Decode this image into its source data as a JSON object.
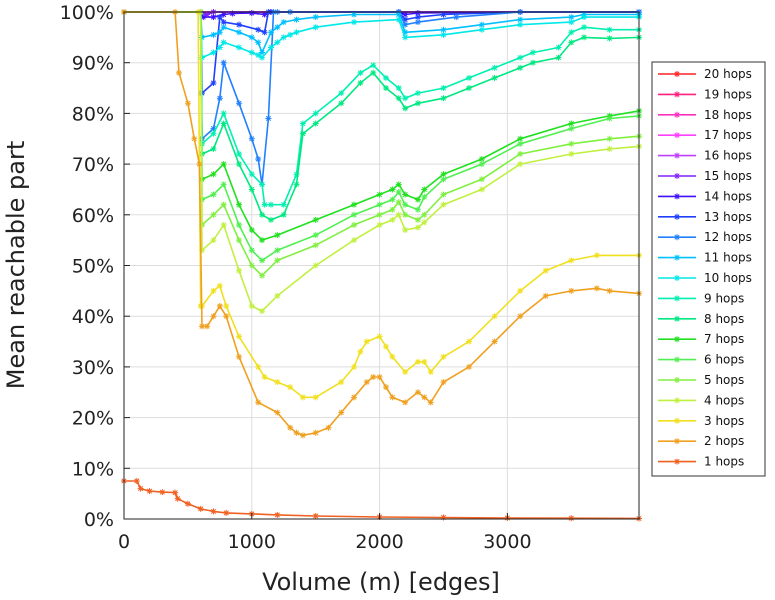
{
  "chart_data": {
    "type": "line",
    "title": "",
    "xlabel": "Volume (m) [edges]",
    "ylabel": "Mean reachable part",
    "xlim": [
      0,
      4030
    ],
    "ylim": [
      0,
      100
    ],
    "x_ticks": [
      0,
      1000,
      2000,
      3000
    ],
    "x_tick_labels": [
      "0",
      "1000",
      "2000",
      "3000"
    ],
    "y_ticks": [
      0,
      10,
      20,
      30,
      40,
      50,
      60,
      70,
      80,
      90,
      100
    ],
    "y_tick_labels": [
      "0%",
      "10%",
      "20%",
      "30%",
      "40%",
      "50%",
      "60%",
      "70%",
      "80%",
      "90%",
      "100%"
    ],
    "grid": true,
    "legend_position": "right",
    "series": [
      {
        "name": "20 hops",
        "color": "#ff2020",
        "x": [
          0,
          4030
        ],
        "y": [
          100,
          100
        ]
      },
      {
        "name": "19 hops",
        "color": "#ff2080",
        "x": [
          0,
          4030
        ],
        "y": [
          100,
          100
        ]
      },
      {
        "name": "18 hops",
        "color": "#ff30c0",
        "x": [
          0,
          4030
        ],
        "y": [
          100,
          100
        ]
      },
      {
        "name": "17 hops",
        "color": "#ff40ff",
        "x": [
          0,
          4030
        ],
        "y": [
          100,
          100
        ]
      },
      {
        "name": "16 hops",
        "color": "#c040ff",
        "x": [
          0,
          4030
        ],
        "y": [
          100,
          100
        ]
      },
      {
        "name": "15 hops",
        "color": "#8020ff",
        "x": [
          0,
          600,
          650,
          700,
          4030
        ],
        "y": [
          100,
          100,
          99.5,
          100,
          100
        ]
      },
      {
        "name": "14 hops",
        "color": "#4010ff",
        "x": [
          0,
          600,
          620,
          700,
          780,
          850,
          1000,
          1100,
          1150,
          2150,
          2200,
          2300,
          3100,
          4030
        ],
        "y": [
          100,
          100,
          99,
          99,
          99.5,
          99.7,
          99.8,
          99.5,
          100,
          100,
          99.5,
          99.8,
          100,
          100
        ]
      },
      {
        "name": "13 hops",
        "color": "#2040ff",
        "x": [
          0,
          600,
          610,
          700,
          750,
          780,
          900,
          1050,
          1100,
          1130,
          2150,
          2200,
          2300,
          2500,
          3100,
          4030
        ],
        "y": [
          100,
          100,
          84,
          86,
          99,
          98,
          97.5,
          96.5,
          96,
          100,
          100,
          98.5,
          99,
          99.5,
          100,
          100
        ]
      },
      {
        "name": "12 hops",
        "color": "#2080ff",
        "x": [
          0,
          600,
          610,
          700,
          750,
          780,
          900,
          1000,
          1050,
          1080,
          1130,
          1170,
          1200,
          1300,
          2150,
          2200,
          2300,
          2600,
          3100,
          4030
        ],
        "y": [
          100,
          100,
          75,
          77,
          83,
          90,
          82,
          75,
          71,
          66,
          79,
          100,
          100,
          100,
          100,
          97.5,
          98,
          99,
          100,
          100
        ]
      },
      {
        "name": "11 hops",
        "color": "#00c0ff",
        "x": [
          0,
          600,
          610,
          700,
          750,
          780,
          900,
          1000,
          1050,
          1080,
          1150,
          1200,
          1250,
          1350,
          1500,
          1800,
          2150,
          2200,
          2500,
          2800,
          3100,
          3500,
          3600,
          4030
        ],
        "y": [
          100,
          100,
          95,
          95.5,
          96,
          97,
          96,
          95,
          94,
          92,
          96,
          97,
          98,
          98.5,
          99,
          99.5,
          99.5,
          96,
          96.5,
          97.5,
          98.5,
          99,
          99.5,
          99.5
        ]
      },
      {
        "name": "10 hops",
        "color": "#00e8e8",
        "x": [
          0,
          600,
          610,
          700,
          750,
          780,
          900,
          1000,
          1050,
          1080,
          1150,
          1200,
          1250,
          1300,
          1350,
          1500,
          1800,
          2150,
          2200,
          2500,
          2800,
          3100,
          3500,
          3600,
          4030
        ],
        "y": [
          100,
          100,
          91,
          92,
          93,
          94,
          93,
          92,
          91.5,
          91,
          93,
          94,
          95,
          95.5,
          96,
          97,
          98,
          98.5,
          95,
          95.5,
          96.5,
          97.5,
          98,
          99,
          99
        ]
      },
      {
        "name": "9 hops",
        "color": "#00f0b0",
        "x": [
          0,
          600,
          610,
          700,
          780,
          900,
          1000,
          1080,
          1100,
          1150,
          1250,
          1350,
          1400,
          1500,
          1700,
          1850,
          1950,
          2050,
          2150,
          2200,
          2300,
          2500,
          2700,
          2900,
          3100,
          3200,
          3400,
          3500,
          3600,
          3800,
          4030
        ],
        "y": [
          100,
          100,
          74,
          76,
          80,
          72,
          68,
          66,
          62,
          62,
          62,
          68,
          78,
          80,
          84,
          88,
          89.5,
          87,
          85,
          83,
          84,
          85,
          87,
          89,
          91,
          92,
          93,
          96,
          97,
          96.5,
          96.5
        ]
      },
      {
        "name": "8 hops",
        "color": "#00e880",
        "x": [
          0,
          600,
          610,
          700,
          780,
          900,
          1000,
          1080,
          1150,
          1250,
          1350,
          1400,
          1500,
          1700,
          1850,
          1950,
          2050,
          2150,
          2200,
          2300,
          2500,
          2700,
          2900,
          3100,
          3200,
          3400,
          3500,
          3600,
          3800,
          4030
        ],
        "y": [
          100,
          100,
          72,
          73,
          78,
          70,
          65,
          60,
          59,
          60,
          66,
          76,
          78,
          82,
          86,
          88,
          85,
          83,
          81,
          82,
          83,
          85,
          87,
          89,
          90,
          91,
          94,
          95,
          94.8,
          95
        ]
      },
      {
        "name": "7 hops",
        "color": "#20e020",
        "x": [
          0,
          600,
          610,
          700,
          780,
          900,
          1000,
          1080,
          1200,
          1500,
          1800,
          2000,
          2100,
          2150,
          2200,
          2300,
          2350,
          2500,
          2800,
          3100,
          3500,
          3800,
          4030
        ],
        "y": [
          100,
          100,
          67,
          68,
          70,
          62,
          57,
          55,
          56,
          59,
          62,
          64,
          65,
          66,
          64,
          63,
          65,
          68,
          71,
          75,
          78,
          79.5,
          80.5
        ]
      },
      {
        "name": "6 hops",
        "color": "#50f050",
        "x": [
          0,
          600,
          610,
          700,
          780,
          900,
          1000,
          1080,
          1200,
          1500,
          1800,
          2000,
          2100,
          2150,
          2200,
          2300,
          2350,
          2500,
          2800,
          3100,
          3500,
          3800,
          4030
        ],
        "y": [
          100,
          100,
          63,
          64,
          66,
          58,
          53,
          51,
          53,
          56,
          60,
          62,
          63,
          64.5,
          62,
          61,
          63.5,
          67,
          70,
          74,
          77,
          79,
          79.5
        ]
      },
      {
        "name": "5 hops",
        "color": "#80f040",
        "x": [
          0,
          600,
          610,
          700,
          780,
          900,
          1000,
          1080,
          1200,
          1500,
          1800,
          2000,
          2100,
          2150,
          2200,
          2300,
          2350,
          2500,
          2800,
          3100,
          3500,
          3800,
          4030
        ],
        "y": [
          100,
          100,
          58,
          60,
          62,
          55,
          50,
          48,
          51,
          54,
          58,
          60,
          61,
          62.5,
          60,
          59,
          60,
          64,
          67,
          72,
          74,
          75,
          75.5
        ]
      },
      {
        "name": "4 hops",
        "color": "#c0f040",
        "x": [
          0,
          600,
          610,
          700,
          780,
          900,
          1000,
          1080,
          1200,
          1500,
          1800,
          2000,
          2100,
          2150,
          2200,
          2300,
          2350,
          2500,
          2800,
          3100,
          3500,
          3800,
          4030
        ],
        "y": [
          100,
          100,
          53,
          55,
          58,
          49,
          42,
          41,
          44,
          50,
          55,
          58,
          59,
          60,
          57,
          57.5,
          58.5,
          62,
          65,
          70,
          72,
          73,
          73.5
        ]
      },
      {
        "name": "3 hops",
        "color": "#f0e020",
        "x": [
          0,
          580,
          600,
          610,
          700,
          750,
          800,
          900,
          1050,
          1100,
          1200,
          1300,
          1400,
          1500,
          1700,
          1800,
          1850,
          1900,
          2000,
          2050,
          2100,
          2200,
          2300,
          2350,
          2400,
          2500,
          2700,
          2900,
          3100,
          3300,
          3500,
          3700,
          4030
        ],
        "y": [
          100,
          100,
          42,
          42,
          45,
          46,
          42,
          36,
          30,
          28,
          27,
          26,
          24,
          24,
          27,
          30,
          33,
          35,
          36,
          34,
          32,
          29,
          31,
          31,
          29,
          32,
          35,
          40,
          45,
          49,
          51,
          52,
          52
        ]
      },
      {
        "name": "2 hops",
        "color": "#f0a020",
        "x": [
          0,
          400,
          430,
          500,
          550,
          590,
          610,
          650,
          700,
          750,
          800,
          900,
          1050,
          1200,
          1300,
          1350,
          1400,
          1500,
          1600,
          1700,
          1800,
          1900,
          1950,
          2000,
          2050,
          2100,
          2200,
          2300,
          2350,
          2400,
          2500,
          2700,
          2900,
          3100,
          3300,
          3500,
          3700,
          3800,
          4030
        ],
        "y": [
          100,
          100,
          88,
          82,
          75,
          70,
          38,
          38,
          40,
          42,
          40,
          32,
          23,
          21,
          18,
          17,
          16.5,
          17,
          18,
          21,
          24,
          27,
          28,
          28,
          26,
          24,
          23,
          25,
          24,
          23,
          27,
          30,
          35,
          40,
          44,
          45,
          45.5,
          45,
          44.5
        ]
      },
      {
        "name": "1 hops",
        "color": "#f06020",
        "x": [
          0,
          100,
          130,
          200,
          300,
          400,
          420,
          500,
          600,
          700,
          800,
          1000,
          1200,
          1500,
          2000,
          2500,
          3000,
          3500,
          4030
        ],
        "y": [
          7.5,
          7.5,
          6,
          5.5,
          5.3,
          5.2,
          4,
          3,
          2,
          1.5,
          1.2,
          1,
          0.8,
          0.6,
          0.4,
          0.3,
          0.2,
          0.15,
          0.1
        ]
      }
    ]
  }
}
